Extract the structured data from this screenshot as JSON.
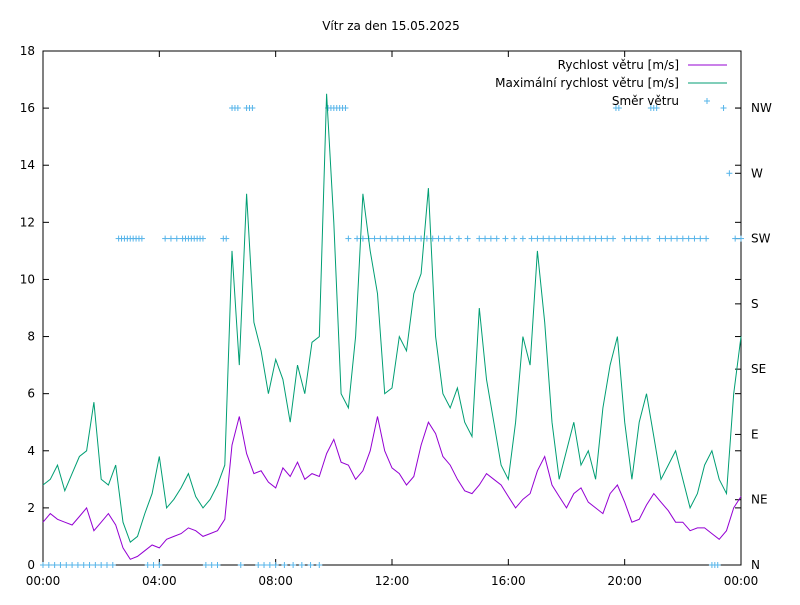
{
  "chart_data": {
    "type": "line",
    "title": "Vítr za den 15.05.2025",
    "x_ticks": [
      "00:00",
      "04:00",
      "08:00",
      "12:00",
      "16:00",
      "20:00",
      "00:00"
    ],
    "x_range_hours": [
      0,
      24
    ],
    "y_ticks": [
      "0",
      "2",
      "4",
      "6",
      "8",
      "10",
      "12",
      "14",
      "16",
      "18"
    ],
    "ylim": [
      0,
      18
    ],
    "y2_ticks": [
      "N",
      "NE",
      "E",
      "SE",
      "S",
      "SW",
      "W",
      "NW"
    ],
    "y2_range_degrees": [
      0,
      315
    ],
    "grid": false,
    "legend_position": "top-right",
    "colors": {
      "speed": "#9400D3",
      "max_speed": "#009E73",
      "direction": "#56B4E9"
    },
    "series": [
      {
        "name": "Rychlost větru [m/s]",
        "x_hours": [
          0.0,
          0.25,
          0.5,
          0.75,
          1.0,
          1.25,
          1.5,
          1.75,
          2.0,
          2.25,
          2.5,
          2.75,
          3.0,
          3.25,
          3.5,
          3.75,
          4.0,
          4.25,
          4.5,
          4.75,
          5.0,
          5.25,
          5.5,
          5.75,
          6.0,
          6.25,
          6.5,
          6.75,
          7.0,
          7.25,
          7.5,
          7.75,
          8.0,
          8.25,
          8.5,
          8.75,
          9.0,
          9.25,
          9.5,
          9.75,
          10.0,
          10.25,
          10.5,
          10.75,
          11.0,
          11.25,
          11.5,
          11.75,
          12.0,
          12.25,
          12.5,
          12.75,
          13.0,
          13.25,
          13.5,
          13.75,
          14.0,
          14.25,
          14.5,
          14.75,
          15.0,
          15.25,
          15.5,
          15.75,
          16.0,
          16.25,
          16.5,
          16.75,
          17.0,
          17.25,
          17.5,
          17.75,
          18.0,
          18.25,
          18.5,
          18.75,
          19.0,
          19.25,
          19.5,
          19.75,
          20.0,
          20.25,
          20.5,
          20.75,
          21.0,
          21.25,
          21.5,
          21.75,
          22.0,
          22.25,
          22.5,
          22.75,
          23.0,
          23.25,
          23.5,
          23.75,
          24.0
        ],
        "values": [
          1.5,
          1.8,
          1.6,
          1.5,
          1.4,
          1.7,
          2.0,
          1.2,
          1.5,
          1.8,
          1.4,
          0.6,
          0.2,
          0.3,
          0.5,
          0.7,
          0.6,
          0.9,
          1.0,
          1.1,
          1.3,
          1.2,
          1.0,
          1.1,
          1.2,
          1.6,
          4.2,
          5.2,
          3.9,
          3.2,
          3.3,
          2.9,
          2.7,
          3.4,
          3.1,
          3.6,
          3.0,
          3.2,
          3.1,
          3.9,
          4.4,
          3.6,
          3.5,
          3.0,
          3.3,
          4.0,
          5.2,
          4.0,
          3.4,
          3.2,
          2.8,
          3.1,
          4.2,
          5.0,
          4.6,
          3.8,
          3.5,
          3.0,
          2.6,
          2.5,
          2.8,
          3.2,
          3.0,
          2.8,
          2.4,
          2.0,
          2.3,
          2.5,
          3.3,
          3.8,
          2.8,
          2.4,
          2.0,
          2.5,
          2.7,
          2.2,
          2.0,
          1.8,
          2.5,
          2.8,
          2.2,
          1.5,
          1.6,
          2.1,
          2.5,
          2.2,
          1.9,
          1.5,
          1.5,
          1.2,
          1.3,
          1.3,
          1.1,
          0.9,
          1.2,
          2.0,
          2.4
        ]
      },
      {
        "name": "Maximální rychlost větru [m/s]",
        "x_hours": [
          0.0,
          0.25,
          0.5,
          0.75,
          1.0,
          1.25,
          1.5,
          1.75,
          2.0,
          2.25,
          2.5,
          2.75,
          3.0,
          3.25,
          3.5,
          3.75,
          4.0,
          4.25,
          4.5,
          4.75,
          5.0,
          5.25,
          5.5,
          5.75,
          6.0,
          6.25,
          6.5,
          6.75,
          7.0,
          7.25,
          7.5,
          7.75,
          8.0,
          8.25,
          8.5,
          8.75,
          9.0,
          9.25,
          9.5,
          9.75,
          10.0,
          10.25,
          10.5,
          10.75,
          11.0,
          11.25,
          11.5,
          11.75,
          12.0,
          12.25,
          12.5,
          12.75,
          13.0,
          13.25,
          13.5,
          13.75,
          14.0,
          14.25,
          14.5,
          14.75,
          15.0,
          15.25,
          15.5,
          15.75,
          16.0,
          16.25,
          16.5,
          16.75,
          17.0,
          17.25,
          17.5,
          17.75,
          18.0,
          18.25,
          18.5,
          18.75,
          19.0,
          19.25,
          19.5,
          19.75,
          20.0,
          20.25,
          20.5,
          20.75,
          21.0,
          21.25,
          21.5,
          21.75,
          22.0,
          22.25,
          22.5,
          22.75,
          23.0,
          23.25,
          23.5,
          23.75,
          24.0
        ],
        "values": [
          2.8,
          3.0,
          3.5,
          2.6,
          3.2,
          3.8,
          4.0,
          5.7,
          3.0,
          2.8,
          3.5,
          1.5,
          0.8,
          1.0,
          1.8,
          2.5,
          3.8,
          2.0,
          2.3,
          2.7,
          3.2,
          2.4,
          2.0,
          2.3,
          2.8,
          3.5,
          11.0,
          7.0,
          13.0,
          8.5,
          7.5,
          6.0,
          7.2,
          6.5,
          5.0,
          7.0,
          6.0,
          7.8,
          8.0,
          16.5,
          12.0,
          6.0,
          5.5,
          8.0,
          13.0,
          11.0,
          9.5,
          6.0,
          6.2,
          8.0,
          7.5,
          9.5,
          10.2,
          13.2,
          8.0,
          6.0,
          5.5,
          6.2,
          5.0,
          4.5,
          9.0,
          6.5,
          5.0,
          3.5,
          3.0,
          5.0,
          8.0,
          7.0,
          11.0,
          8.5,
          5.0,
          3.0,
          4.0,
          5.0,
          3.5,
          4.0,
          3.0,
          5.5,
          7.0,
          8.0,
          5.0,
          3.0,
          5.0,
          6.0,
          4.5,
          3.0,
          3.5,
          4.0,
          3.0,
          2.0,
          2.5,
          3.5,
          4.0,
          3.0,
          2.5,
          6.0,
          8.0
        ]
      },
      {
        "name": "Směr větru",
        "style": "points",
        "x_hours": [
          0.0,
          0.2,
          0.4,
          0.6,
          0.8,
          1.0,
          1.2,
          1.4,
          1.6,
          1.8,
          2.0,
          2.2,
          2.4,
          2.6,
          2.7,
          2.8,
          2.9,
          3.0,
          3.1,
          3.2,
          3.3,
          3.4,
          3.6,
          3.8,
          4.0,
          4.2,
          4.4,
          4.6,
          4.8,
          4.9,
          5.0,
          5.1,
          5.2,
          5.3,
          5.4,
          5.5,
          5.6,
          5.8,
          6.0,
          6.2,
          6.3,
          6.5,
          6.6,
          6.7,
          6.8,
          7.0,
          7.1,
          7.2,
          7.4,
          7.6,
          7.8,
          8.0,
          8.3,
          8.6,
          8.9,
          9.2,
          9.5,
          9.8,
          9.9,
          10.0,
          10.1,
          10.2,
          10.3,
          10.4,
          10.5,
          10.8,
          11.0,
          11.2,
          11.4,
          11.6,
          11.8,
          12.0,
          12.2,
          12.4,
          12.6,
          12.8,
          13.0,
          13.2,
          13.4,
          13.6,
          13.8,
          14.0,
          14.3,
          14.6,
          15.0,
          15.2,
          15.4,
          15.6,
          15.9,
          16.2,
          16.5,
          16.8,
          17.0,
          17.2,
          17.4,
          17.6,
          17.8,
          18.0,
          18.2,
          18.4,
          18.6,
          18.8,
          19.0,
          19.2,
          19.4,
          19.6,
          19.7,
          19.8,
          20.0,
          20.2,
          20.4,
          20.6,
          20.8,
          20.9,
          21.0,
          21.1,
          21.2,
          21.4,
          21.6,
          21.8,
          22.0,
          22.2,
          22.4,
          22.6,
          22.8,
          23.0,
          23.1,
          23.2,
          23.4,
          23.6,
          23.8,
          24.0
        ],
        "values": [
          0,
          0,
          0,
          0,
          0,
          0,
          0,
          0,
          0,
          0,
          0,
          0,
          0,
          225,
          225,
          225,
          225,
          225,
          225,
          225,
          225,
          225,
          0,
          0,
          0,
          225,
          225,
          225,
          225,
          225,
          225,
          225,
          225,
          225,
          225,
          225,
          0,
          0,
          0,
          225,
          225,
          315,
          315,
          315,
          0,
          315,
          315,
          315,
          0,
          0,
          0,
          0,
          0,
          0,
          0,
          0,
          0,
          315,
          315,
          315,
          315,
          315,
          315,
          315,
          225,
          225,
          225,
          225,
          225,
          225,
          225,
          225,
          225,
          225,
          225,
          225,
          225,
          225,
          225,
          225,
          225,
          225,
          225,
          225,
          225,
          225,
          225,
          225,
          225,
          225,
          225,
          225,
          225,
          225,
          225,
          225,
          225,
          225,
          225,
          225,
          225,
          225,
          225,
          225,
          225,
          225,
          315,
          315,
          225,
          225,
          225,
          225,
          225,
          315,
          315,
          315,
          225,
          225,
          225,
          225,
          225,
          225,
          225,
          225,
          225,
          0,
          0,
          0,
          315,
          270,
          225,
          225
        ]
      }
    ]
  }
}
